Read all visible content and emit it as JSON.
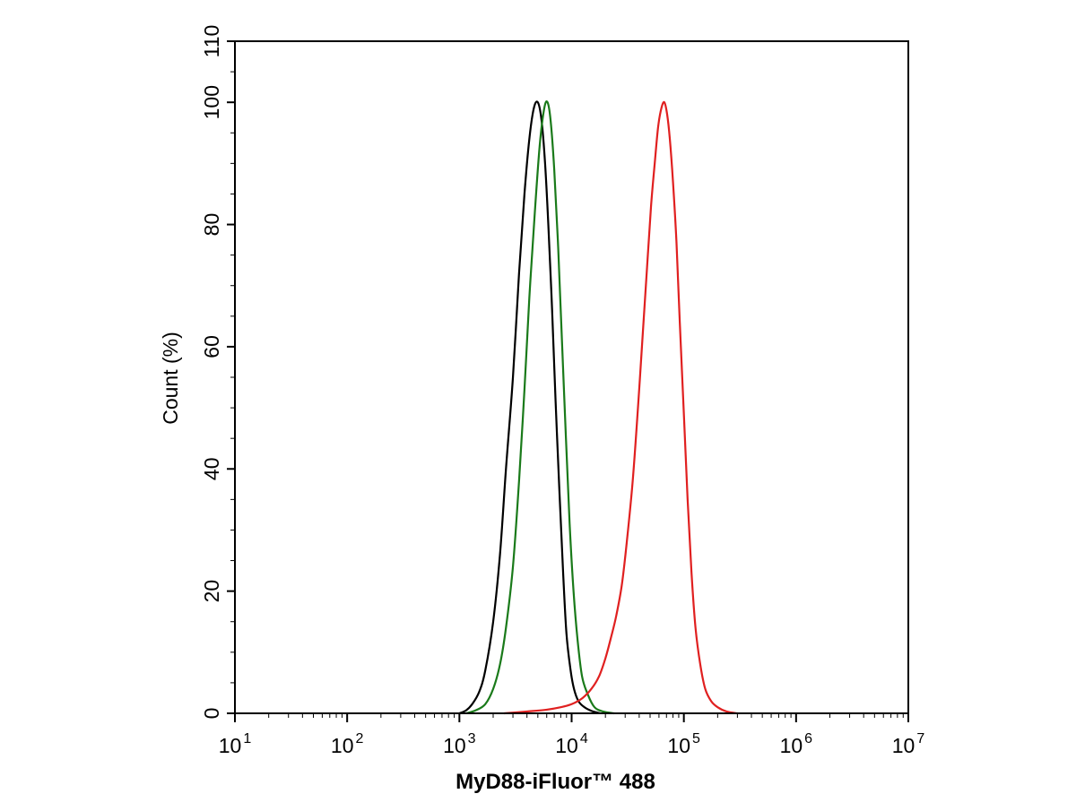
{
  "chart_data": {
    "type": "line",
    "title": "",
    "xlabel": "MyD88-iFluor™ 488",
    "ylabel": "Count  (%)",
    "x_scale": "log",
    "xlim": [
      10,
      10000000
    ],
    "ylim": [
      0,
      110
    ],
    "x_ticks": [
      {
        "base": "10",
        "exp": "1",
        "value": 10
      },
      {
        "base": "10",
        "exp": "2",
        "value": 100
      },
      {
        "base": "10",
        "exp": "3",
        "value": 1000
      },
      {
        "base": "10",
        "exp": "4",
        "value": 10000
      },
      {
        "base": "10",
        "exp": "5",
        "value": 100000
      },
      {
        "base": "10",
        "exp": "6",
        "value": 1000000
      },
      {
        "base": "10",
        "exp": "7",
        "value": 10000000
      }
    ],
    "y_ticks": [
      "0",
      "20",
      "40",
      "60",
      "80",
      "100",
      "110"
    ],
    "grid": false,
    "legend": "none",
    "series": [
      {
        "color": "#000000",
        "points": [
          [
            1000,
            0
          ],
          [
            1150,
            0.5
          ],
          [
            1300,
            1.5
          ],
          [
            1500,
            3.5
          ],
          [
            1700,
            7
          ],
          [
            2000,
            15
          ],
          [
            2300,
            26
          ],
          [
            2600,
            40
          ],
          [
            3000,
            55
          ],
          [
            3400,
            72
          ],
          [
            3800,
            85
          ],
          [
            4200,
            94
          ],
          [
            4600,
            99
          ],
          [
            5000,
            100
          ],
          [
            5400,
            97
          ],
          [
            5800,
            90
          ],
          [
            6200,
            80
          ],
          [
            6700,
            66
          ],
          [
            7200,
            51
          ],
          [
            7800,
            36
          ],
          [
            8400,
            23
          ],
          [
            9000,
            13
          ],
          [
            9800,
            7
          ],
          [
            10500,
            4
          ],
          [
            11500,
            2
          ],
          [
            13000,
            1
          ],
          [
            15000,
            0.4
          ],
          [
            18000,
            0
          ]
        ]
      },
      {
        "color": "#1a7a1a",
        "points": [
          [
            1150,
            0
          ],
          [
            1400,
            0.5
          ],
          [
            1700,
            1.5
          ],
          [
            2000,
            4
          ],
          [
            2300,
            8
          ],
          [
            2600,
            14
          ],
          [
            3000,
            24
          ],
          [
            3400,
            38
          ],
          [
            3800,
            53
          ],
          [
            4200,
            68
          ],
          [
            4700,
            82
          ],
          [
            5200,
            93
          ],
          [
            5700,
            99
          ],
          [
            6100,
            100
          ],
          [
            6500,
            97
          ],
          [
            7000,
            89
          ],
          [
            7600,
            76
          ],
          [
            8200,
            61
          ],
          [
            8900,
            45
          ],
          [
            9600,
            31
          ],
          [
            10400,
            20
          ],
          [
            11300,
            12
          ],
          [
            12400,
            6
          ],
          [
            14000,
            3
          ],
          [
            16000,
            1
          ],
          [
            19000,
            0.3
          ],
          [
            24000,
            0
          ]
        ]
      },
      {
        "color": "#e02020",
        "points": [
          [
            2500,
            0
          ],
          [
            4000,
            0.3
          ],
          [
            6000,
            0.6
          ],
          [
            8000,
            1
          ],
          [
            10000,
            1.5
          ],
          [
            12500,
            2.5
          ],
          [
            15000,
            4
          ],
          [
            17500,
            6
          ],
          [
            20000,
            9
          ],
          [
            22500,
            12.5
          ],
          [
            25000,
            16
          ],
          [
            28000,
            21
          ],
          [
            31000,
            28
          ],
          [
            35000,
            38
          ],
          [
            39000,
            50
          ],
          [
            43000,
            62
          ],
          [
            47000,
            73
          ],
          [
            51000,
            83
          ],
          [
            55000,
            90
          ],
          [
            59000,
            96
          ],
          [
            63000,
            99
          ],
          [
            67000,
            100
          ],
          [
            71000,
            98
          ],
          [
            75000,
            94
          ],
          [
            80000,
            87
          ],
          [
            86000,
            77
          ],
          [
            92000,
            64
          ],
          [
            100000,
            49
          ],
          [
            108000,
            35
          ],
          [
            117000,
            23
          ],
          [
            127000,
            14
          ],
          [
            140000,
            8
          ],
          [
            155000,
            4
          ],
          [
            175000,
            2
          ],
          [
            200000,
            1
          ],
          [
            240000,
            0.3
          ],
          [
            300000,
            0
          ]
        ]
      }
    ]
  }
}
